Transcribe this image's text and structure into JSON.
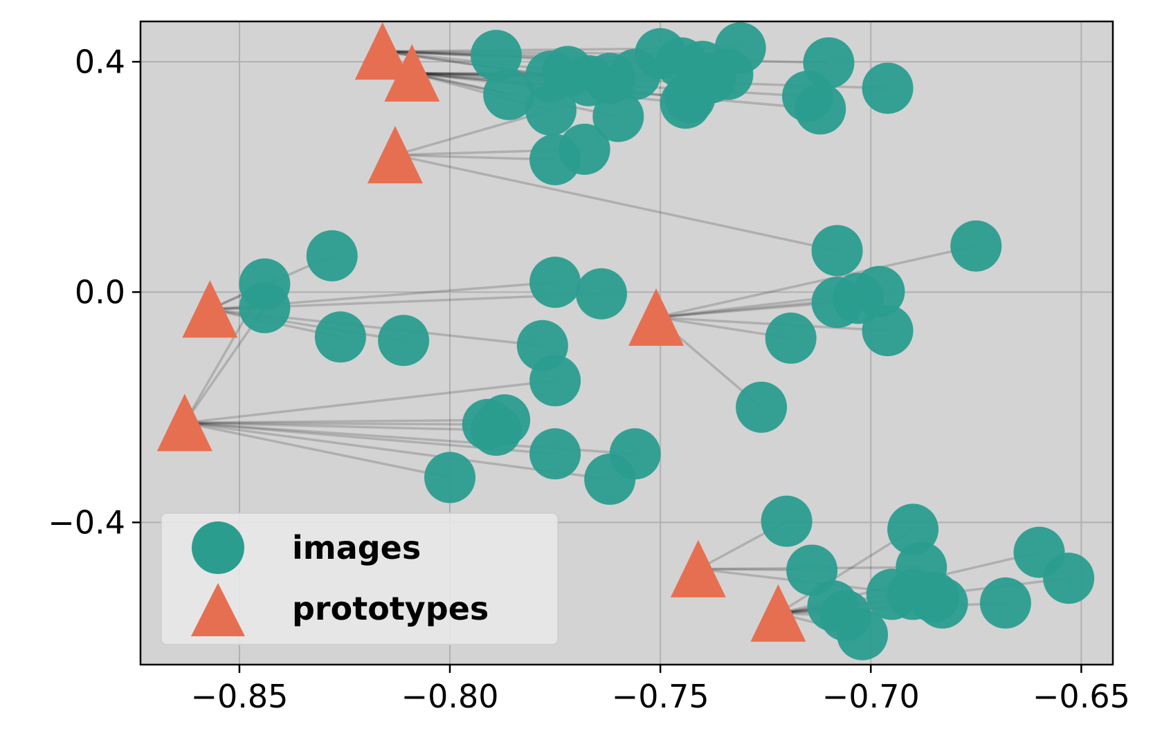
{
  "chart_data": {
    "type": "scatter",
    "title": "",
    "xlabel": "",
    "ylabel": "",
    "xlim": [
      -0.8735,
      -0.6425
    ],
    "ylim": [
      -0.647,
      0.47
    ],
    "xticks": [
      -0.85,
      -0.8,
      -0.75,
      -0.7,
      -0.65
    ],
    "xtick_labels": [
      "−0.85",
      "−0.80",
      "−0.75",
      "−0.70",
      "−0.65"
    ],
    "yticks": [
      0.4,
      0.0,
      -0.4
    ],
    "ytick_labels": [
      "0.4",
      "0.0",
      "−0.4"
    ],
    "grid": true,
    "legend_position": "lower-left",
    "colors": {
      "background": "#d3d3d3",
      "images": "#2a9d8f",
      "prototypes": "#e76f51",
      "link": "#000000",
      "grid": "#b0b0b0"
    },
    "series": [
      {
        "name": "images",
        "marker": "circle",
        "points": [
          [
            -0.789,
            0.411
          ],
          [
            -0.772,
            0.383
          ],
          [
            -0.776,
            0.375
          ],
          [
            -0.767,
            0.367
          ],
          [
            -0.786,
            0.343
          ],
          [
            -0.776,
            0.316
          ],
          [
            -0.768,
            0.248
          ],
          [
            -0.775,
            0.23
          ],
          [
            -0.76,
            0.305
          ],
          [
            -0.762,
            0.371
          ],
          [
            -0.756,
            0.378
          ],
          [
            -0.75,
            0.414
          ],
          [
            -0.745,
            0.398
          ],
          [
            -0.74,
            0.392
          ],
          [
            -0.738,
            0.372
          ],
          [
            -0.734,
            0.378
          ],
          [
            -0.743,
            0.338
          ],
          [
            -0.744,
            0.328
          ],
          [
            -0.731,
            0.424
          ],
          [
            -0.71,
            0.398
          ],
          [
            -0.715,
            0.34
          ],
          [
            -0.712,
            0.318
          ],
          [
            -0.696,
            0.354
          ],
          [
            -0.828,
            0.063
          ],
          [
            -0.844,
            0.014
          ],
          [
            -0.844,
            -0.027
          ],
          [
            -0.826,
            -0.078
          ],
          [
            -0.811,
            -0.084
          ],
          [
            -0.775,
            0.017
          ],
          [
            -0.764,
            -0.003
          ],
          [
            -0.778,
            -0.093
          ],
          [
            -0.775,
            -0.154
          ],
          [
            -0.708,
            0.072
          ],
          [
            -0.675,
            0.08
          ],
          [
            -0.698,
            0.001
          ],
          [
            -0.703,
            -0.011
          ],
          [
            -0.708,
            -0.018
          ],
          [
            -0.696,
            -0.067
          ],
          [
            -0.719,
            -0.08
          ],
          [
            -0.726,
            -0.2
          ],
          [
            -0.787,
            -0.222
          ],
          [
            -0.791,
            -0.23
          ],
          [
            -0.789,
            -0.24
          ],
          [
            -0.775,
            -0.281
          ],
          [
            -0.756,
            -0.281
          ],
          [
            -0.762,
            -0.325
          ],
          [
            -0.8,
            -0.322
          ],
          [
            -0.72,
            -0.398
          ],
          [
            -0.69,
            -0.412
          ],
          [
            -0.688,
            -0.478
          ],
          [
            -0.714,
            -0.483
          ],
          [
            -0.695,
            -0.525
          ],
          [
            -0.709,
            -0.545
          ],
          [
            -0.706,
            -0.562
          ],
          [
            -0.69,
            -0.525
          ],
          [
            -0.685,
            -0.53
          ],
          [
            -0.683,
            -0.54
          ],
          [
            -0.668,
            -0.54
          ],
          [
            -0.66,
            -0.452
          ],
          [
            -0.653,
            -0.497
          ],
          [
            -0.702,
            -0.595
          ]
        ]
      },
      {
        "name": "prototypes",
        "marker": "triangle",
        "points": [
          [
            -0.816,
            0.418
          ],
          [
            -0.809,
            0.38
          ],
          [
            -0.813,
            0.238
          ],
          [
            -0.857,
            -0.03
          ],
          [
            -0.751,
            -0.044
          ],
          [
            -0.863,
            -0.227
          ],
          [
            -0.741,
            -0.481
          ],
          [
            -0.722,
            -0.558
          ]
        ]
      }
    ],
    "links": [
      [
        0,
        0
      ],
      [
        0,
        1
      ],
      [
        0,
        2
      ],
      [
        0,
        3
      ],
      [
        0,
        11
      ],
      [
        0,
        12
      ],
      [
        0,
        18
      ],
      [
        0,
        19
      ],
      [
        0,
        13
      ],
      [
        1,
        4
      ],
      [
        1,
        5
      ],
      [
        1,
        8
      ],
      [
        1,
        9
      ],
      [
        1,
        10
      ],
      [
        1,
        14
      ],
      [
        1,
        15
      ],
      [
        1,
        16
      ],
      [
        1,
        17
      ],
      [
        1,
        20
      ],
      [
        1,
        21
      ],
      [
        1,
        22
      ],
      [
        2,
        5
      ],
      [
        2,
        6
      ],
      [
        2,
        7
      ],
      [
        2,
        32
      ],
      [
        3,
        23
      ],
      [
        3,
        24
      ],
      [
        3,
        25
      ],
      [
        3,
        26
      ],
      [
        3,
        27
      ],
      [
        3,
        28
      ],
      [
        3,
        29
      ],
      [
        3,
        30
      ],
      [
        4,
        33
      ],
      [
        4,
        34
      ],
      [
        4,
        35
      ],
      [
        4,
        36
      ],
      [
        4,
        37
      ],
      [
        4,
        38
      ],
      [
        4,
        39
      ],
      [
        5,
        24
      ],
      [
        5,
        25
      ],
      [
        5,
        31
      ],
      [
        5,
        40
      ],
      [
        5,
        41
      ],
      [
        5,
        42
      ],
      [
        5,
        43
      ],
      [
        5,
        44
      ],
      [
        5,
        45
      ],
      [
        5,
        46
      ],
      [
        6,
        47
      ],
      [
        6,
        49
      ],
      [
        6,
        54
      ],
      [
        6,
        50
      ],
      [
        7,
        48
      ],
      [
        7,
        51
      ],
      [
        7,
        52
      ],
      [
        7,
        53
      ],
      [
        7,
        55
      ],
      [
        7,
        56
      ],
      [
        7,
        57
      ],
      [
        7,
        58
      ],
      [
        7,
        59
      ],
      [
        7,
        60
      ]
    ]
  },
  "legend": {
    "items": [
      {
        "label": "images",
        "marker": "circle"
      },
      {
        "label": "prototypes",
        "marker": "triangle"
      }
    ]
  }
}
